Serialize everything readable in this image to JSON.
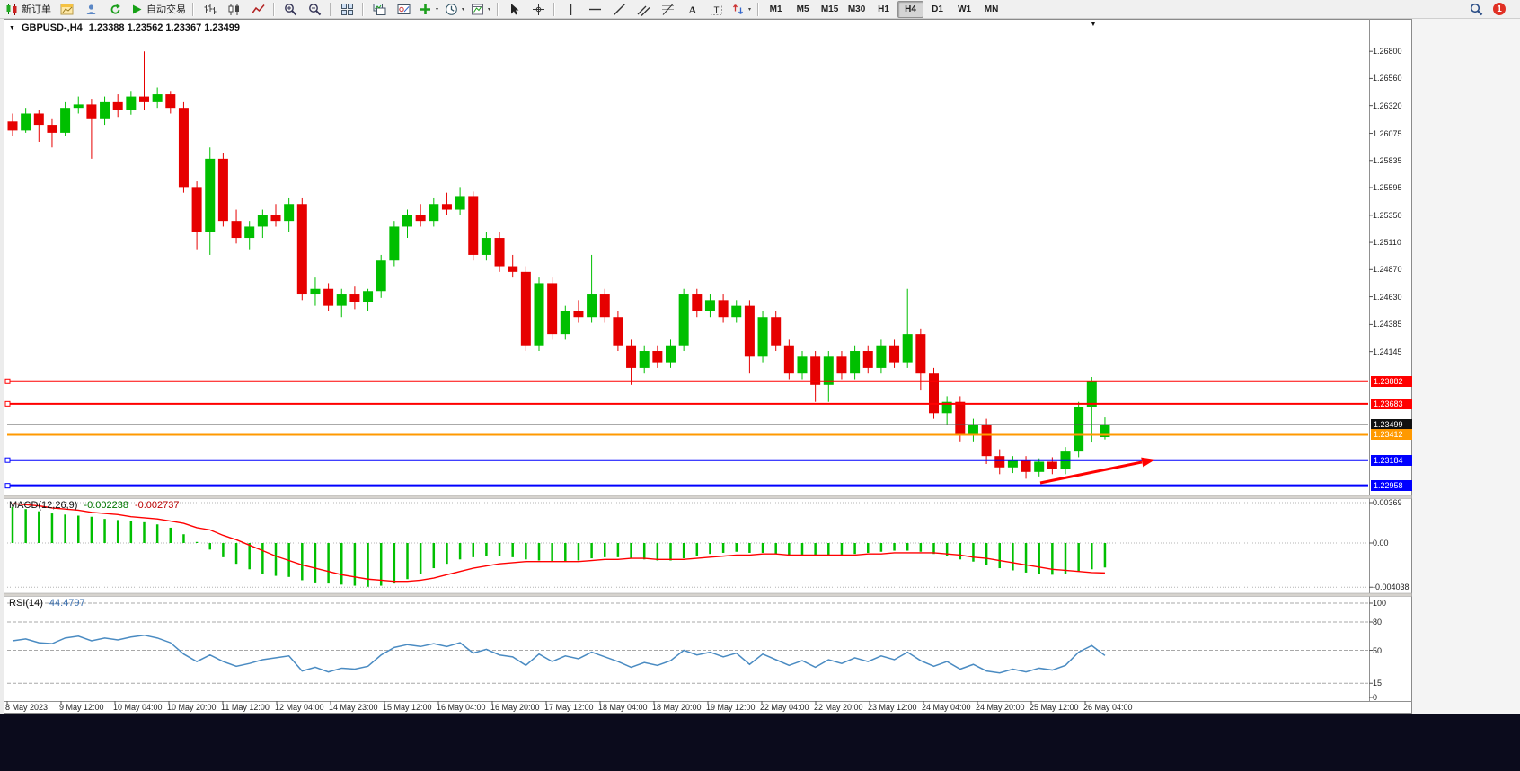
{
  "toolbar": {
    "items": [
      {
        "name": "new-order-button",
        "icon": "neworder",
        "label": "新订单"
      },
      {
        "name": "chart-window-button",
        "icon": "winchart"
      },
      {
        "name": "profile-button",
        "icon": "profile"
      },
      {
        "name": "refresh-button",
        "icon": "refresh"
      },
      {
        "name": "auto-trading-button",
        "icon": "play",
        "label": "自动交易"
      },
      {
        "name": "separator"
      },
      {
        "name": "bar-chart-type-button",
        "icon": "bars"
      },
      {
        "name": "candlestick-type-button",
        "icon": "candles"
      },
      {
        "name": "line-chart-type-button",
        "icon": "linechart"
      },
      {
        "name": "separator"
      },
      {
        "name": "zoom-in-button",
        "icon": "zoomin"
      },
      {
        "name": "zoom-out-button",
        "icon": "zoomout"
      },
      {
        "name": "separator"
      },
      {
        "name": "tile-windows-button",
        "icon": "tile"
      },
      {
        "name": "separator"
      },
      {
        "name": "indicator-list-button",
        "icon": "indlist"
      },
      {
        "name": "object-list-button",
        "icon": "objlist"
      },
      {
        "name": "add-indicator-button",
        "icon": "plus",
        "caret": true
      },
      {
        "name": "period-menu-button",
        "icon": "clock",
        "caret": true
      },
      {
        "name": "template-menu-button",
        "icon": "template",
        "caret": true
      },
      {
        "name": "separator"
      },
      {
        "name": "cursor-button",
        "icon": "cursor"
      },
      {
        "name": "crosshair-button",
        "icon": "crosshair"
      },
      {
        "name": "separator"
      },
      {
        "name": "vertical-line-button",
        "icon": "vline"
      },
      {
        "name": "horizontal-line-button",
        "icon": "hline"
      },
      {
        "name": "trendline-button",
        "icon": "trend"
      },
      {
        "name": "channel-button",
        "icon": "channel"
      },
      {
        "name": "fibonacci-button",
        "icon": "fibo"
      },
      {
        "name": "text-button",
        "icon": "textA"
      },
      {
        "name": "label-button",
        "icon": "labelT"
      },
      {
        "name": "arrows-button",
        "icon": "arrows",
        "caret": true
      },
      {
        "name": "separator"
      }
    ],
    "timeframes": [
      "M1",
      "M5",
      "M15",
      "M30",
      "H1",
      "H4",
      "D1",
      "W1",
      "MN"
    ],
    "active_timeframe": "H4",
    "notification_count": "1"
  },
  "chart": {
    "title_symbol": "GBPUSD-,H4",
    "title_ohlc": "1.23388 1.23562 1.23367 1.23499",
    "colors": {
      "bull": "#00bf00",
      "bear": "#e60000",
      "macd_histogram": "#00bf00",
      "macd_signal": "#ff0000",
      "rsi_line": "#4a8bc2"
    },
    "price_axis_labels": [
      "1.26800",
      "1.26560",
      "1.26320",
      "1.26075",
      "1.25835",
      "1.25595",
      "1.25350",
      "1.25110",
      "1.24870",
      "1.24630",
      "1.24385",
      "1.24145"
    ],
    "time_axis_labels": [
      "8 May 2023",
      "9 May 12:00",
      "10 May 04:00",
      "10 May 20:00",
      "11 May 12:00",
      "12 May 04:00",
      "14 May 23:00",
      "15 May 12:00",
      "16 May 04:00",
      "16 May 20:00",
      "17 May 12:00",
      "18 May 04:00",
      "18 May 20:00",
      "19 May 12:00",
      "22 May 04:00",
      "22 May 20:00",
      "23 May 12:00",
      "24 May 04:00",
      "24 May 20:00",
      "25 May 12:00",
      "26 May 04:00"
    ],
    "hlines": [
      {
        "price": 1.23882,
        "label": "1.23882",
        "color": "#ff0000",
        "width": 2,
        "handle": true,
        "tag": "#ff0000"
      },
      {
        "price": 1.23683,
        "label": "1.23683",
        "color": "#ff0000",
        "width": 2,
        "handle": true,
        "tag": "#ff0000"
      },
      {
        "price": 1.23499,
        "label": "1.23499",
        "color": "#555555",
        "width": 1,
        "handle": false,
        "tag": "#111111"
      },
      {
        "price": 1.23412,
        "label": "1.23412",
        "color": "#ff9900",
        "width": 3,
        "handle": false,
        "tag": "#ff9900"
      },
      {
        "price": 1.23184,
        "label": "1.23184",
        "color": "#0000ff",
        "width": 2,
        "handle": true,
        "tag": "#0000ff"
      },
      {
        "price": 1.22958,
        "label": "1.22958",
        "color": "#0000ff",
        "width": 3,
        "handle": true,
        "tag": "#0000ff"
      }
    ],
    "arrow_annotation": {
      "color": "#ff0000",
      "description": "red up-right arrow near the lows"
    }
  },
  "macd_panel": {
    "label": "MACD(12,26,9)",
    "value_main": "-0.002238",
    "value_signal": "-0.002737",
    "axis_labels": [
      "0.00369",
      "0.00",
      "-0.004038"
    ]
  },
  "rsi_panel": {
    "label": "RSI(14)",
    "value": "44.4797",
    "axis_labels": [
      "100",
      "80",
      "50",
      "15",
      "0"
    ],
    "levels": [
      100,
      80,
      50,
      15
    ]
  },
  "chart_data": {
    "type": "candlestick",
    "symbol": "GBPUSD-",
    "timeframe": "H4",
    "price_range": [
      1.2288,
      1.27
    ],
    "ohlc": [
      [
        1.2618,
        1.2625,
        1.2605,
        1.261
      ],
      [
        1.261,
        1.263,
        1.2608,
        1.2625
      ],
      [
        1.2625,
        1.2628,
        1.26,
        1.2615
      ],
      [
        1.2615,
        1.262,
        1.2595,
        1.2608
      ],
      [
        1.2608,
        1.2635,
        1.2605,
        1.263
      ],
      [
        1.263,
        1.264,
        1.2625,
        1.2633
      ],
      [
        1.2633,
        1.2638,
        1.2585,
        1.262
      ],
      [
        1.262,
        1.264,
        1.2615,
        1.2635
      ],
      [
        1.2635,
        1.2642,
        1.2622,
        1.2628
      ],
      [
        1.2628,
        1.2645,
        1.2624,
        1.264
      ],
      [
        1.264,
        1.268,
        1.2628,
        1.2635
      ],
      [
        1.2635,
        1.2648,
        1.263,
        1.2642
      ],
      [
        1.2642,
        1.2645,
        1.2625,
        1.263
      ],
      [
        1.263,
        1.2635,
        1.2555,
        1.256
      ],
      [
        1.256,
        1.2565,
        1.2505,
        1.252
      ],
      [
        1.252,
        1.2595,
        1.25,
        1.2585
      ],
      [
        1.2585,
        1.259,
        1.2525,
        1.253
      ],
      [
        1.253,
        1.254,
        1.251,
        1.2515
      ],
      [
        1.2515,
        1.253,
        1.2505,
        1.2525
      ],
      [
        1.2525,
        1.254,
        1.2515,
        1.2535
      ],
      [
        1.2535,
        1.2545,
        1.2525,
        1.253
      ],
      [
        1.253,
        1.255,
        1.252,
        1.2545
      ],
      [
        1.2545,
        1.255,
        1.246,
        1.2465
      ],
      [
        1.2465,
        1.248,
        1.2455,
        1.247
      ],
      [
        1.247,
        1.2475,
        1.245,
        1.2455
      ],
      [
        1.2455,
        1.247,
        1.2445,
        1.2465
      ],
      [
        1.2465,
        1.2472,
        1.2452,
        1.2458
      ],
      [
        1.2458,
        1.247,
        1.245,
        1.2468
      ],
      [
        1.2468,
        1.25,
        1.2462,
        1.2495
      ],
      [
        1.2495,
        1.253,
        1.249,
        1.2525
      ],
      [
        1.2525,
        1.254,
        1.2515,
        1.2535
      ],
      [
        1.2535,
        1.2545,
        1.2525,
        1.253
      ],
      [
        1.253,
        1.255,
        1.2525,
        1.2545
      ],
      [
        1.2545,
        1.2555,
        1.2535,
        1.254
      ],
      [
        1.254,
        1.256,
        1.2535,
        1.2552
      ],
      [
        1.2552,
        1.2556,
        1.2495,
        1.25
      ],
      [
        1.25,
        1.252,
        1.2495,
        1.2515
      ],
      [
        1.2515,
        1.252,
        1.2485,
        1.249
      ],
      [
        1.249,
        1.25,
        1.248,
        1.2485
      ],
      [
        1.2485,
        1.249,
        1.2415,
        1.242
      ],
      [
        1.242,
        1.248,
        1.2415,
        1.2475
      ],
      [
        1.2475,
        1.248,
        1.2425,
        1.243
      ],
      [
        1.243,
        1.2455,
        1.2425,
        1.245
      ],
      [
        1.245,
        1.246,
        1.244,
        1.2445
      ],
      [
        1.2445,
        1.25,
        1.244,
        1.2465
      ],
      [
        1.2465,
        1.247,
        1.244,
        1.2445
      ],
      [
        1.2445,
        1.245,
        1.2415,
        1.242
      ],
      [
        1.242,
        1.2425,
        1.2385,
        1.24
      ],
      [
        1.24,
        1.242,
        1.2395,
        1.2415
      ],
      [
        1.2415,
        1.242,
        1.24,
        1.2405
      ],
      [
        1.2405,
        1.2425,
        1.24,
        1.242
      ],
      [
        1.242,
        1.247,
        1.2415,
        1.2465
      ],
      [
        1.2465,
        1.247,
        1.2445,
        1.245
      ],
      [
        1.245,
        1.2465,
        1.2445,
        1.246
      ],
      [
        1.246,
        1.2465,
        1.244,
        1.2445
      ],
      [
        1.2445,
        1.246,
        1.244,
        1.2455
      ],
      [
        1.2455,
        1.246,
        1.2395,
        1.241
      ],
      [
        1.241,
        1.245,
        1.2405,
        1.2445
      ],
      [
        1.2445,
        1.245,
        1.2415,
        1.242
      ],
      [
        1.242,
        1.2425,
        1.239,
        1.2395
      ],
      [
        1.2395,
        1.2415,
        1.239,
        1.241
      ],
      [
        1.241,
        1.2415,
        1.237,
        1.2385
      ],
      [
        1.2385,
        1.2415,
        1.237,
        1.241
      ],
      [
        1.241,
        1.2415,
        1.239,
        1.2395
      ],
      [
        1.2395,
        1.242,
        1.239,
        1.2415
      ],
      [
        1.2415,
        1.242,
        1.2395,
        1.24
      ],
      [
        1.24,
        1.2425,
        1.2395,
        1.242
      ],
      [
        1.242,
        1.2425,
        1.24,
        1.2405
      ],
      [
        1.2405,
        1.247,
        1.24,
        1.243
      ],
      [
        1.243,
        1.2435,
        1.238,
        1.2395
      ],
      [
        1.2395,
        1.24,
        1.2355,
        1.236
      ],
      [
        1.236,
        1.2375,
        1.235,
        1.237
      ],
      [
        1.237,
        1.2375,
        1.2335,
        1.234
      ],
      [
        1.234,
        1.2355,
        1.2335,
        1.235
      ],
      [
        1.235,
        1.2355,
        1.2315,
        1.2322
      ],
      [
        1.2322,
        1.2328,
        1.2306,
        1.2312
      ],
      [
        1.2312,
        1.2322,
        1.2307,
        1.2318
      ],
      [
        1.2318,
        1.2322,
        1.2302,
        1.2308
      ],
      [
        1.2308,
        1.232,
        1.2304,
        1.2317
      ],
      [
        1.2317,
        1.2321,
        1.2306,
        1.2311
      ],
      [
        1.2311,
        1.233,
        1.2306,
        1.2326
      ],
      [
        1.2326,
        1.237,
        1.2321,
        1.2365
      ],
      [
        1.2365,
        1.2392,
        1.2334,
        1.2388
      ],
      [
        1.23388,
        1.23562,
        1.23367,
        1.23499
      ]
    ],
    "indicators": [
      {
        "name": "MACD",
        "params": [
          12,
          26,
          9
        ],
        "current": [
          -0.002238,
          -0.002737
        ],
        "scale_max": 0.00369,
        "scale_min": -0.004038,
        "histogram": [
          0.0033,
          0.0031,
          0.0029,
          0.0027,
          0.0026,
          0.0025,
          0.0024,
          0.0022,
          0.0021,
          0.002,
          0.0019,
          0.0017,
          0.0014,
          0.0008,
          0.0001,
          -0.0006,
          -0.0013,
          -0.0019,
          -0.0024,
          -0.0028,
          -0.003,
          -0.0031,
          -0.0034,
          -0.0036,
          -0.0037,
          -0.0038,
          -0.0039,
          -0.004,
          -0.0039,
          -0.0037,
          -0.0033,
          -0.0028,
          -0.0023,
          -0.0019,
          -0.0015,
          -0.0013,
          -0.0012,
          -0.0012,
          -0.0013,
          -0.0015,
          -0.0016,
          -0.0017,
          -0.0017,
          -0.0016,
          -0.0014,
          -0.0013,
          -0.0013,
          -0.0014,
          -0.0015,
          -0.0016,
          -0.0016,
          -0.0014,
          -0.0012,
          -0.001,
          -0.0009,
          -0.0008,
          -0.0009,
          -0.0009,
          -0.001,
          -0.0011,
          -0.0011,
          -0.0012,
          -0.0012,
          -0.0011,
          -0.001,
          -0.0009,
          -0.0008,
          -0.0007,
          -0.0007,
          -0.0008,
          -0.001,
          -0.0012,
          -0.0015,
          -0.0017,
          -0.002,
          -0.0023,
          -0.0025,
          -0.0027,
          -0.0028,
          -0.0029,
          -0.0028,
          -0.0026,
          -0.0024,
          -0.002238
        ],
        "signal": [
          0.0036,
          0.0035,
          0.0034,
          0.0032,
          0.0031,
          0.003,
          0.0028,
          0.0027,
          0.0026,
          0.0024,
          0.0023,
          0.0022,
          0.002,
          0.0018,
          0.0014,
          0.0012,
          0.0007,
          0.0003,
          -0.0002,
          -0.0007,
          -0.0012,
          -0.0016,
          -0.002,
          -0.0023,
          -0.0026,
          -0.0029,
          -0.0031,
          -0.0033,
          -0.0034,
          -0.0035,
          -0.0035,
          -0.0034,
          -0.0032,
          -0.0029,
          -0.0026,
          -0.0023,
          -0.0021,
          -0.0019,
          -0.0018,
          -0.0017,
          -0.0017,
          -0.0017,
          -0.0017,
          -0.0017,
          -0.0016,
          -0.0015,
          -0.0015,
          -0.0014,
          -0.0014,
          -0.0015,
          -0.0015,
          -0.0015,
          -0.0014,
          -0.0013,
          -0.0012,
          -0.0011,
          -0.0011,
          -0.001,
          -0.001,
          -0.0011,
          -0.0011,
          -0.0011,
          -0.0011,
          -0.0011,
          -0.0011,
          -0.001,
          -0.001,
          -0.0009,
          -0.0009,
          -0.0009,
          -0.0009,
          -0.001,
          -0.0011,
          -0.0013,
          -0.0014,
          -0.0016,
          -0.0018,
          -0.002,
          -0.0022,
          -0.0024,
          -0.0025,
          -0.0026,
          -0.0027,
          -0.002737
        ]
      },
      {
        "name": "RSI",
        "params": [
          14
        ],
        "current": 44.4797,
        "values": [
          60,
          62,
          58,
          57,
          63,
          65,
          60,
          63,
          61,
          64,
          66,
          63,
          58,
          46,
          38,
          45,
          38,
          33,
          36,
          40,
          42,
          44,
          28,
          32,
          27,
          31,
          30,
          33,
          45,
          53,
          56,
          54,
          57,
          54,
          58,
          47,
          51,
          45,
          43,
          34,
          46,
          38,
          44,
          41,
          48,
          43,
          38,
          32,
          37,
          34,
          39,
          50,
          45,
          48,
          43,
          47,
          35,
          46,
          40,
          34,
          39,
          32,
          40,
          36,
          42,
          38,
          44,
          40,
          48,
          39,
          33,
          38,
          30,
          35,
          28,
          26,
          30,
          27,
          31,
          29,
          34,
          48,
          55,
          44.4797
        ]
      }
    ]
  }
}
